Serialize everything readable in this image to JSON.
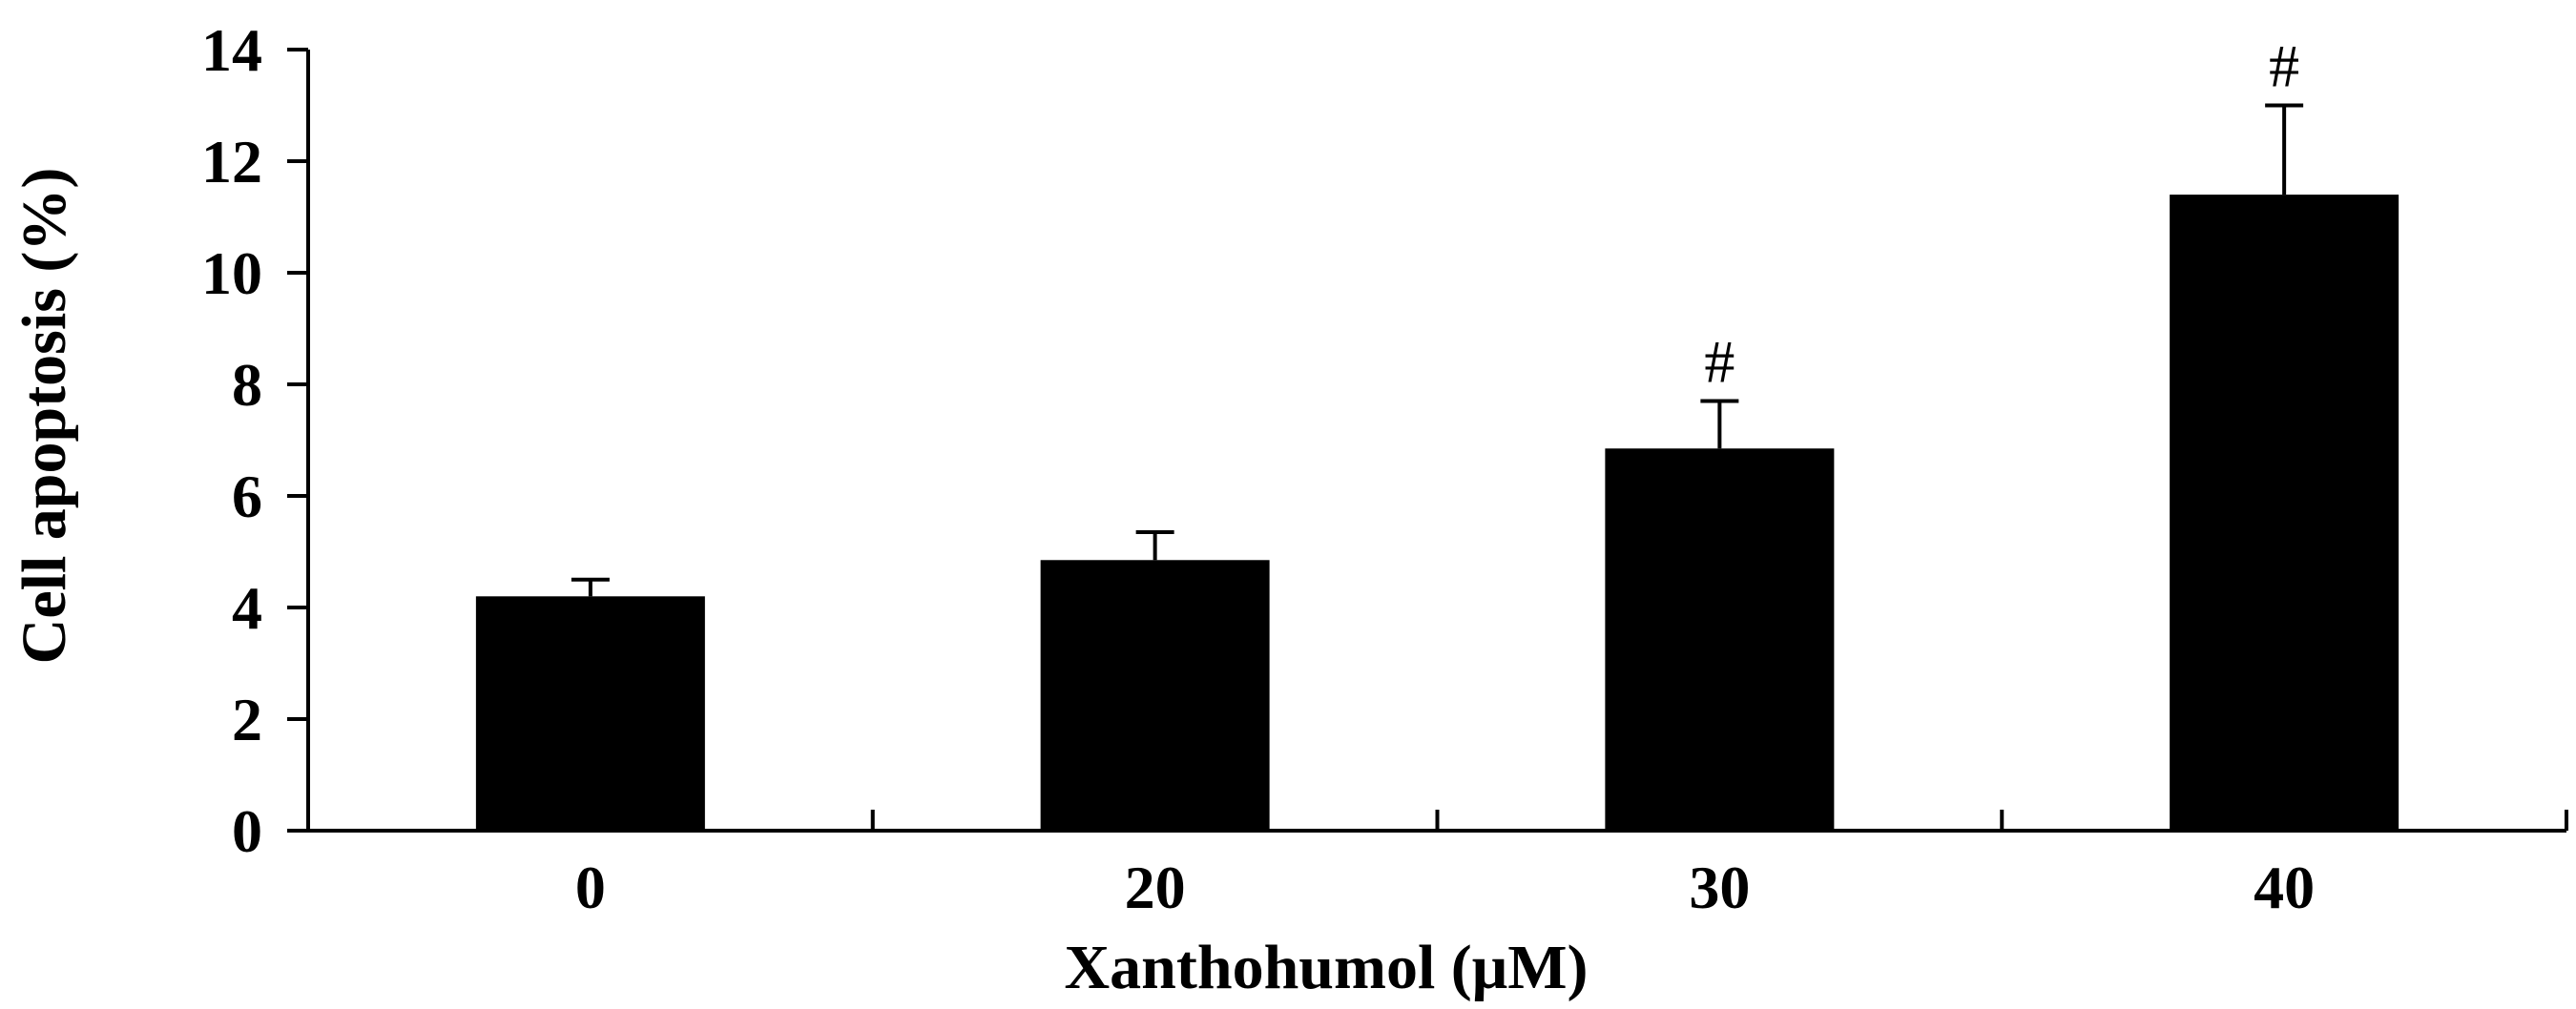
{
  "chart_data": {
    "type": "bar",
    "title": "",
    "xlabel": "Xanthohumol (μM)",
    "ylabel": "Cell apoptosis (%)",
    "categories": [
      "0",
      "20",
      "30",
      "40"
    ],
    "series": [
      {
        "values": [
          4.2,
          4.85,
          6.85,
          11.4
        ],
        "errors": [
          0.3,
          0.5,
          0.85,
          1.6
        ]
      }
    ],
    "annotations": [
      "",
      "",
      "#",
      "#"
    ],
    "ylim": [
      0,
      14
    ],
    "yticks": [
      0,
      2,
      4,
      6,
      8,
      10,
      12,
      14
    ],
    "grid": false,
    "legend": "none",
    "colors": {
      "bar": "#000000",
      "axis": "#000000",
      "background": "#ffffff"
    }
  }
}
